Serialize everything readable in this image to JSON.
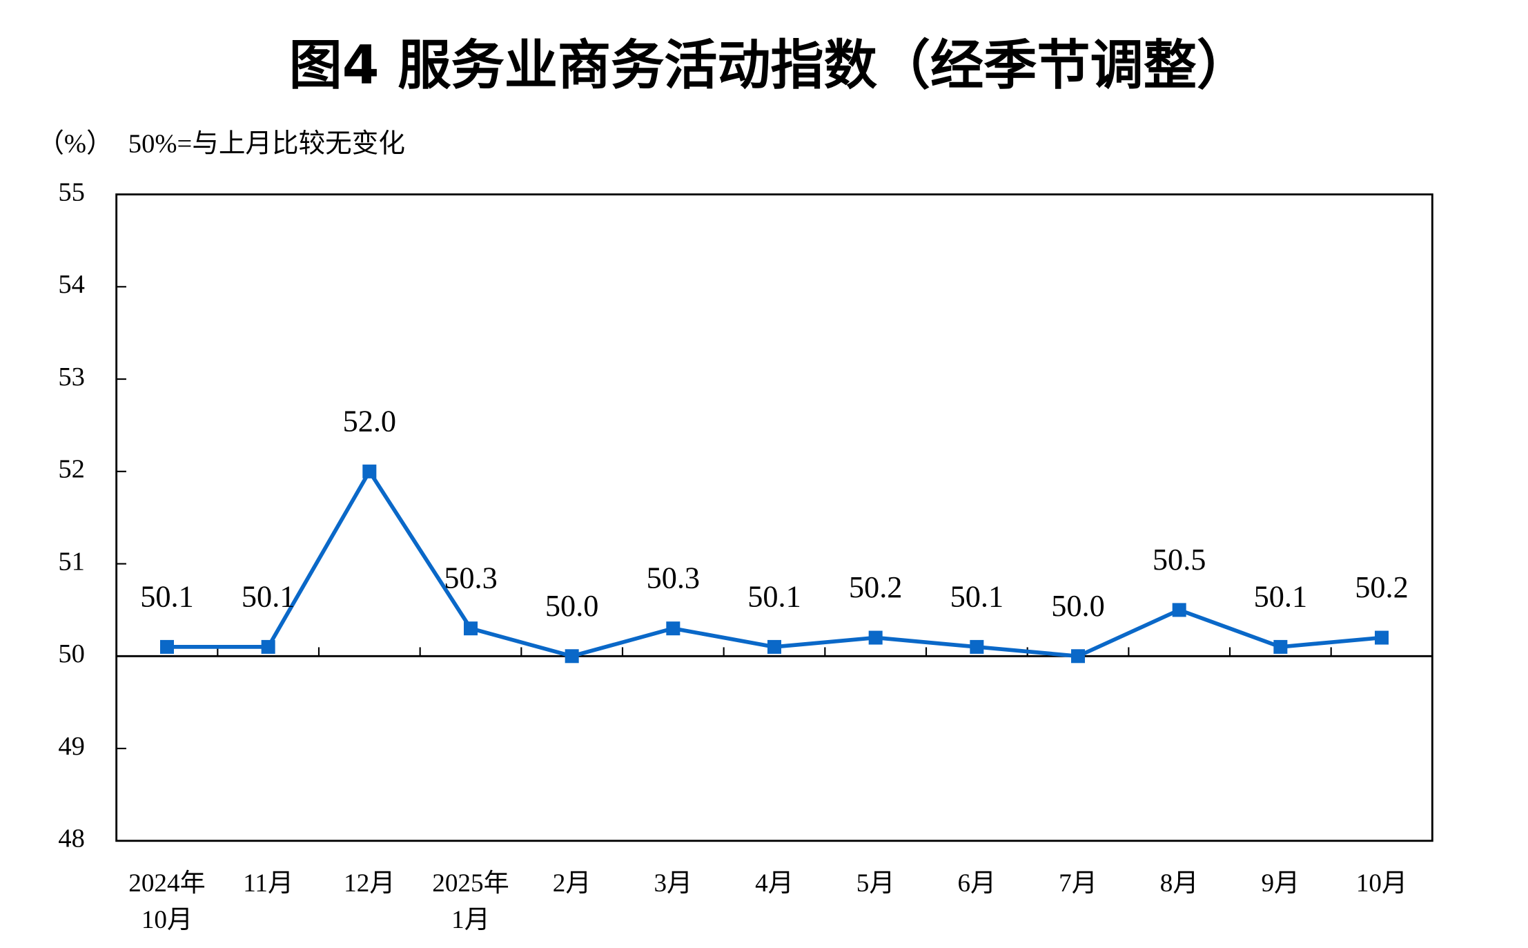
{
  "chart_data": {
    "type": "line",
    "title": "图4  服务业商务活动指数（经季节调整）",
    "y_unit": "（%）",
    "note": "50%=与上月比较无变化",
    "categories": [
      [
        "2024年",
        "10月"
      ],
      [
        "11月"
      ],
      [
        "12月"
      ],
      [
        "2025年",
        "1月"
      ],
      [
        "2月"
      ],
      [
        "3月"
      ],
      [
        "4月"
      ],
      [
        "5月"
      ],
      [
        "6月"
      ],
      [
        "7月"
      ],
      [
        "8月"
      ],
      [
        "9月"
      ],
      [
        "10月"
      ]
    ],
    "series": [
      {
        "name": "服务业商务活动指数",
        "color": "#0a68c8",
        "values": [
          50.1,
          50.1,
          52,
          50.3,
          50,
          50.3,
          50.1,
          50.2,
          50.1,
          50,
          50.5,
          50.1,
          50.2
        ],
        "value_labels": [
          "50.1",
          "50.1",
          "52.0",
          "50.3",
          "50.0",
          "50.3",
          "50.1",
          "50.2",
          "50.1",
          "50.0",
          "50.5",
          "50.1",
          "50.2"
        ]
      }
    ],
    "ylim": [
      48,
      55
    ],
    "yticks": [
      48,
      49,
      50,
      51,
      52,
      53,
      54,
      55
    ],
    "reference_line": 50,
    "grid": false
  }
}
